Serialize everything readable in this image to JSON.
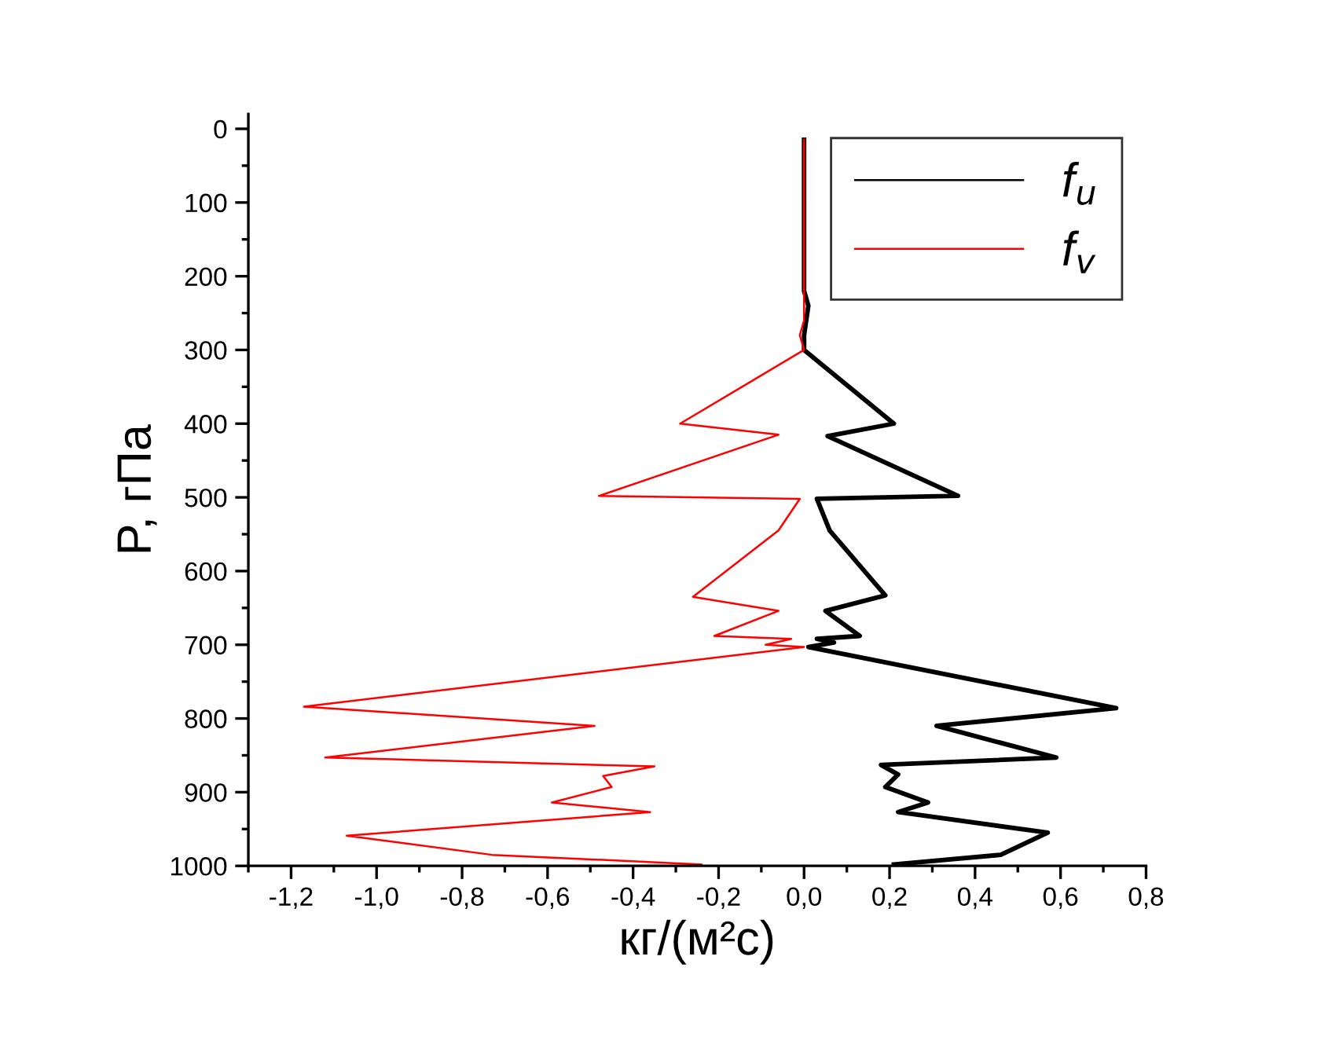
{
  "chart_data": {
    "type": "line",
    "xlabel": "кг/(м²с)",
    "ylabel": "P, гПа",
    "xlim": [
      -1.3,
      0.8
    ],
    "ylim": [
      1000,
      -20
    ],
    "xticks": [
      {
        "value": -1.2,
        "label": "-1,2"
      },
      {
        "value": -1.0,
        "label": "-1,0"
      },
      {
        "value": -0.8,
        "label": "-0,8"
      },
      {
        "value": -0.6,
        "label": "-0,6"
      },
      {
        "value": -0.4,
        "label": "-0,4"
      },
      {
        "value": -0.2,
        "label": "-0,2"
      },
      {
        "value": 0.0,
        "label": "0,0"
      },
      {
        "value": 0.2,
        "label": "0,2"
      },
      {
        "value": 0.4,
        "label": "0,4"
      },
      {
        "value": 0.6,
        "label": "0,6"
      },
      {
        "value": 0.8,
        "label": "0,8"
      }
    ],
    "yticks": [
      0,
      100,
      200,
      300,
      400,
      500,
      600,
      700,
      800,
      900,
      1000
    ],
    "grid": false,
    "legend": "top right",
    "marker": "none",
    "line_style": "solid",
    "series": [
      {
        "name": "f$_{u}$",
        "color": "#000000",
        "x": [
          0.0,
          0.0,
          0.01,
          0.0,
          0.0,
          0.21,
          0.055,
          0.36,
          0.03,
          0.06,
          0.19,
          0.05,
          0.13,
          0.03,
          0.07,
          0.01,
          0.73,
          0.31,
          0.59,
          0.18,
          0.22,
          0.19,
          0.29,
          0.22,
          0.57,
          0.46,
          0.21
        ],
        "values": [
          15,
          220,
          240,
          280,
          300,
          400,
          417,
          498,
          502,
          545,
          633,
          654,
          688,
          692,
          697,
          703,
          786,
          810,
          853,
          863,
          876,
          893,
          914,
          927,
          955,
          985,
          998
        ]
      },
      {
        "name": "f$_{v}$",
        "color": "#ff0000",
        "x": [
          0.0,
          0.0,
          -0.01,
          0.0,
          -0.29,
          -0.06,
          -0.48,
          -0.01,
          -0.06,
          -0.26,
          -0.06,
          -0.21,
          -0.03,
          -0.09,
          0.0,
          -1.17,
          -0.49,
          -1.12,
          -0.35,
          -0.47,
          -0.45,
          -0.59,
          -0.36,
          -1.07,
          -0.73,
          -0.24
        ],
        "values": [
          15,
          260,
          280,
          300,
          400,
          415,
          498,
          502,
          545,
          635,
          654,
          688,
          692,
          700,
          703,
          784,
          810,
          853,
          865,
          878,
          893,
          914,
          927,
          959,
          985,
          998
        ]
      }
    ]
  }
}
